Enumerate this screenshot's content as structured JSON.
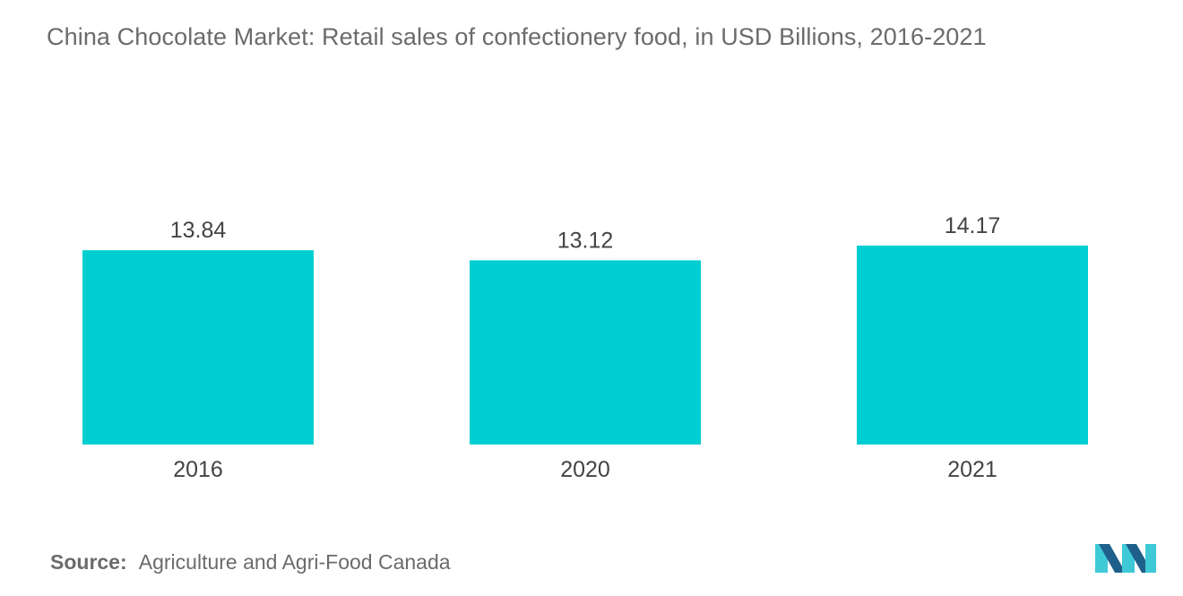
{
  "title": "China Chocolate Market: Retail sales of confectionery food, in USD Billions, 2016-2021",
  "source": {
    "label": "Source:",
    "text": "Agriculture and Agri-Food Canada"
  },
  "logo_icon": "mordor-intelligence-logo-icon",
  "colors": {
    "bar": "#00ced1",
    "text": "#6b6b6b",
    "value_label": "#444444",
    "logo_dark": "#1f5f8b",
    "logo_light": "#3ec9d6"
  },
  "chart_data": {
    "type": "bar",
    "title": "China Chocolate Market: Retail sales of confectionery food, in USD Billions, 2016-2021",
    "categories": [
      "2016",
      "2020",
      "2021"
    ],
    "series": [
      {
        "values": [
          13.84,
          13.12,
          14.17
        ]
      }
    ],
    "value_labels": [
      "13.84",
      "13.12",
      "14.17"
    ],
    "xlabel": "",
    "ylabel": "",
    "ylim": [
      0,
      14.17
    ],
    "grid": false,
    "legend": "none",
    "y_axis_shown": false
  }
}
